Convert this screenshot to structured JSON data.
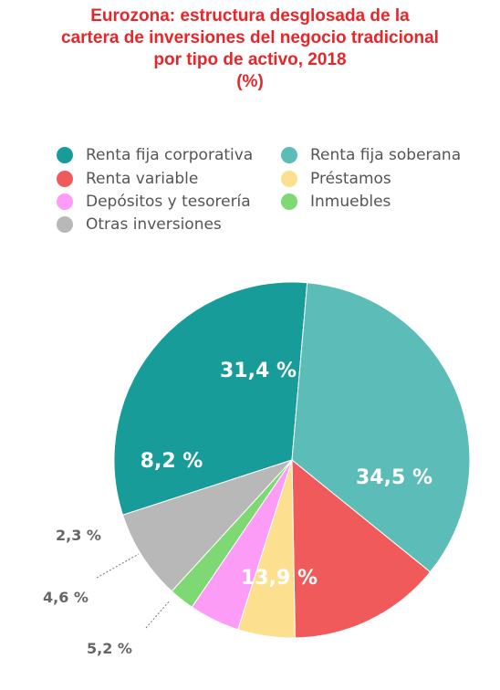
{
  "title_lines": [
    "Eurozona: estructura desglosada de la",
    "cartera de inversiones del negocio tradicional",
    "por tipo de activo, 2018",
    "(%)"
  ],
  "chart_data": {
    "type": "pie",
    "title": "Eurozona: estructura desglosada de la cartera de inversiones del negocio tradicional por tipo de activo, 2018",
    "unit": "(%)",
    "legend_position": "top",
    "slices": [
      {
        "name": "Renta fija corporativa",
        "value": 31.4,
        "label": "31,4 %",
        "color": "#179c99"
      },
      {
        "name": "Renta fija soberana",
        "value": 34.5,
        "label": "34,5 %",
        "color": "#5bbcb8"
      },
      {
        "name": "Renta variable",
        "value": 13.9,
        "label": "13,9 %",
        "color": "#f15a5b"
      },
      {
        "name": "Préstamos",
        "value": 5.2,
        "label": "5,2 %",
        "color": "#fde08f"
      },
      {
        "name": "Depósitos y tesorería",
        "value": 4.6,
        "label": "4,6 %",
        "color": "#fd9cf6"
      },
      {
        "name": "Inmuebles",
        "value": 2.3,
        "label": "2,3 %",
        "color": "#7ed873"
      },
      {
        "name": "Otras inversiones",
        "value": 8.2,
        "label": "8,2 %",
        "color": "#b8b8b8"
      }
    ]
  }
}
